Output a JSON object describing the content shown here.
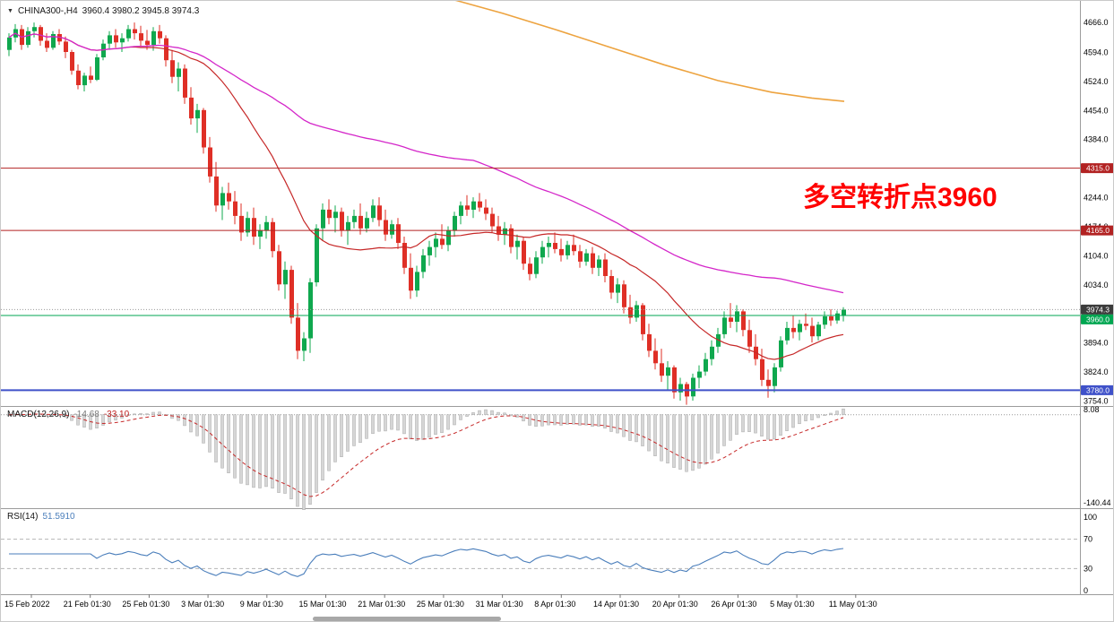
{
  "header": {
    "collapse_icon": "▼",
    "symbol": "CHINA300-,H4",
    "ohlc": "3960.4 3980.2 3945.8 3974.3"
  },
  "chart_data": {
    "type": "candlestick",
    "symbol": "CHINA300-,H4",
    "timeframe": "H4",
    "ohlc_display": "3960.4 3980.2 3945.8 3974.3",
    "ylim": [
      3742,
      4718
    ],
    "price_ticks": [
      4666,
      4594,
      4524,
      4454,
      4384,
      4314,
      4244,
      4174,
      4104,
      4034,
      3964,
      3894,
      3824,
      3754
    ],
    "colors": {
      "up": "#0fa84e",
      "down": "#df2f26"
    },
    "hlines": [
      {
        "price": 4315.0,
        "label": "4315.0",
        "color": "#b22222",
        "width": 1
      },
      {
        "price": 4165.0,
        "label": "4165.0",
        "color": "#b22222",
        "width": 1
      },
      {
        "price": 3960.0,
        "label": "3960.0",
        "color": "#00a651",
        "width": 1
      },
      {
        "price": 3780.0,
        "label": "3780.0",
        "color": "#3f51c9",
        "width": 2
      }
    ],
    "current_price": {
      "value": 3974.3,
      "label": "3974.3",
      "color": "#3c3c3c"
    },
    "annotation": {
      "text": "多空转折点3960",
      "color": "#ff0000"
    },
    "ma_fast": {
      "period": 20,
      "color": "#c62828"
    },
    "ma_slow": {
      "period": 75,
      "color": "#d426c9"
    },
    "orange_line": {
      "color": "#eda33f",
      "points": [
        [
          503,
          4722
        ],
        [
          560,
          4688
        ],
        [
          620,
          4648
        ],
        [
          680,
          4606
        ],
        [
          740,
          4564
        ],
        [
          800,
          4526
        ],
        [
          860,
          4498
        ],
        [
          905,
          4484
        ],
        [
          941,
          4476
        ]
      ]
    },
    "candles": [
      [
        4600,
        4640,
        4585,
        4630
      ],
      [
        4630,
        4662,
        4618,
        4650
      ],
      [
        4650,
        4660,
        4600,
        4612
      ],
      [
        4612,
        4655,
        4605,
        4645
      ],
      [
        4645,
        4666,
        4630,
        4655
      ],
      [
        4655,
        4660,
        4610,
        4622
      ],
      [
        4622,
        4640,
        4595,
        4605
      ],
      [
        4605,
        4645,
        4600,
        4638
      ],
      [
        4638,
        4650,
        4612,
        4620
      ],
      [
        4620,
        4632,
        4580,
        4595
      ],
      [
        4595,
        4600,
        4540,
        4550
      ],
      [
        4550,
        4565,
        4505,
        4515
      ],
      [
        4515,
        4545,
        4500,
        4538
      ],
      [
        4538,
        4560,
        4520,
        4528
      ],
      [
        4528,
        4590,
        4525,
        4582
      ],
      [
        4582,
        4625,
        4575,
        4615
      ],
      [
        4615,
        4645,
        4600,
        4635
      ],
      [
        4635,
        4650,
        4605,
        4618
      ],
      [
        4618,
        4640,
        4595,
        4628
      ],
      [
        4628,
        4660,
        4620,
        4650
      ],
      [
        4650,
        4666,
        4625,
        4640
      ],
      [
        4640,
        4658,
        4610,
        4622
      ],
      [
        4622,
        4648,
        4600,
        4612
      ],
      [
        4612,
        4655,
        4598,
        4645
      ],
      [
        4645,
        4660,
        4615,
        4628
      ],
      [
        4628,
        4635,
        4560,
        4575
      ],
      [
        4575,
        4600,
        4520,
        4535
      ],
      [
        4535,
        4570,
        4500,
        4555
      ],
      [
        4555,
        4565,
        4470,
        4485
      ],
      [
        4485,
        4510,
        4420,
        4435
      ],
      [
        4435,
        4470,
        4400,
        4455
      ],
      [
        4455,
        4460,
        4350,
        4365
      ],
      [
        4365,
        4390,
        4280,
        4295
      ],
      [
        4295,
        4330,
        4210,
        4225
      ],
      [
        4225,
        4270,
        4190,
        4255
      ],
      [
        4255,
        4280,
        4215,
        4235
      ],
      [
        4235,
        4260,
        4180,
        4200
      ],
      [
        4200,
        4230,
        4140,
        4160
      ],
      [
        4160,
        4210,
        4150,
        4195
      ],
      [
        4195,
        4220,
        4130,
        4150
      ],
      [
        4150,
        4180,
        4120,
        4165
      ],
      [
        4165,
        4200,
        4145,
        4185
      ],
      [
        4185,
        4195,
        4100,
        4115
      ],
      [
        4115,
        4130,
        4020,
        4035
      ],
      [
        4035,
        4090,
        4000,
        4070
      ],
      [
        4070,
        4080,
        3940,
        3955
      ],
      [
        3955,
        3990,
        3855,
        3875
      ],
      [
        3875,
        3920,
        3850,
        3905
      ],
      [
        3905,
        4050,
        3870,
        4040
      ],
      [
        4040,
        4180,
        4030,
        4170
      ],
      [
        4170,
        4230,
        4140,
        4215
      ],
      [
        4215,
        4240,
        4180,
        4195
      ],
      [
        4195,
        4225,
        4160,
        4210
      ],
      [
        4210,
        4220,
        4150,
        4165
      ],
      [
        4165,
        4200,
        4130,
        4185
      ],
      [
        4185,
        4215,
        4170,
        4200
      ],
      [
        4200,
        4230,
        4155,
        4170
      ],
      [
        4170,
        4210,
        4160,
        4195
      ],
      [
        4195,
        4240,
        4185,
        4225
      ],
      [
        4225,
        4245,
        4175,
        4190
      ],
      [
        4190,
        4215,
        4140,
        4155
      ],
      [
        4155,
        4190,
        4145,
        4180
      ],
      [
        4180,
        4195,
        4120,
        4135
      ],
      [
        4135,
        4150,
        4060,
        4075
      ],
      [
        4075,
        4110,
        4000,
        4020
      ],
      [
        4020,
        4080,
        4005,
        4065
      ],
      [
        4065,
        4120,
        4050,
        4105
      ],
      [
        4105,
        4140,
        4080,
        4125
      ],
      [
        4125,
        4160,
        4100,
        4145
      ],
      [
        4145,
        4180,
        4120,
        4130
      ],
      [
        4130,
        4175,
        4115,
        4165
      ],
      [
        4165,
        4210,
        4150,
        4200
      ],
      [
        4200,
        4235,
        4180,
        4225
      ],
      [
        4225,
        4250,
        4200,
        4215
      ],
      [
        4215,
        4245,
        4195,
        4235
      ],
      [
        4235,
        4255,
        4210,
        4220
      ],
      [
        4220,
        4240,
        4190,
        4205
      ],
      [
        4205,
        4220,
        4160,
        4175
      ],
      [
        4175,
        4200,
        4140,
        4155
      ],
      [
        4155,
        4185,
        4130,
        4170
      ],
      [
        4170,
        4180,
        4110,
        4125
      ],
      [
        4125,
        4155,
        4095,
        4140
      ],
      [
        4140,
        4150,
        4070,
        4085
      ],
      [
        4085,
        4100,
        4045,
        4060
      ],
      [
        4060,
        4115,
        4050,
        4100
      ],
      [
        4100,
        4140,
        4085,
        4125
      ],
      [
        4125,
        4150,
        4100,
        4135
      ],
      [
        4135,
        4160,
        4110,
        4120
      ],
      [
        4120,
        4145,
        4090,
        4105
      ],
      [
        4105,
        4140,
        4095,
        4130
      ],
      [
        4130,
        4155,
        4105,
        4115
      ],
      [
        4115,
        4130,
        4075,
        4090
      ],
      [
        4090,
        4120,
        4080,
        4110
      ],
      [
        4110,
        4125,
        4060,
        4075
      ],
      [
        4075,
        4105,
        4055,
        4095
      ],
      [
        4095,
        4110,
        4040,
        4055
      ],
      [
        4055,
        4070,
        4000,
        4015
      ],
      [
        4015,
        4050,
        3990,
        4035
      ],
      [
        4035,
        4045,
        3965,
        3980
      ],
      [
        3980,
        4010,
        3940,
        3955
      ],
      [
        3955,
        3995,
        3945,
        3985
      ],
      [
        3985,
        3990,
        3900,
        3915
      ],
      [
        3915,
        3940,
        3860,
        3875
      ],
      [
        3875,
        3905,
        3830,
        3845
      ],
      [
        3845,
        3880,
        3800,
        3815
      ],
      [
        3815,
        3850,
        3780,
        3835
      ],
      [
        3835,
        3840,
        3760,
        3775
      ],
      [
        3775,
        3810,
        3755,
        3795
      ],
      [
        3795,
        3800,
        3745,
        3765
      ],
      [
        3765,
        3820,
        3755,
        3810
      ],
      [
        3810,
        3840,
        3785,
        3825
      ],
      [
        3825,
        3870,
        3815,
        3855
      ],
      [
        3855,
        3900,
        3840,
        3885
      ],
      [
        3885,
        3930,
        3870,
        3915
      ],
      [
        3915,
        3970,
        3905,
        3955
      ],
      [
        3955,
        3990,
        3930,
        3945
      ],
      [
        3945,
        3985,
        3920,
        3970
      ],
      [
        3970,
        3975,
        3910,
        3925
      ],
      [
        3925,
        3950,
        3870,
        3885
      ],
      [
        3885,
        3915,
        3840,
        3855
      ],
      [
        3855,
        3880,
        3790,
        3805
      ],
      [
        3805,
        3830,
        3762,
        3790
      ],
      [
        3790,
        3845,
        3775,
        3835
      ],
      [
        3835,
        3910,
        3825,
        3900
      ],
      [
        3900,
        3945,
        3890,
        3930
      ],
      [
        3930,
        3960,
        3905,
        3920
      ],
      [
        3920,
        3950,
        3900,
        3940
      ],
      [
        3940,
        3965,
        3925,
        3935
      ],
      [
        3935,
        3955,
        3895,
        3910
      ],
      [
        3910,
        3945,
        3900,
        3938
      ],
      [
        3938,
        3970,
        3928,
        3958
      ],
      [
        3958,
        3975,
        3935,
        3948
      ],
      [
        3948,
        3972,
        3940,
        3965
      ],
      [
        3960.4,
        3980.2,
        3945.8,
        3974.3
      ]
    ],
    "time_labels": [
      "15 Feb 2022",
      "21 Feb 01:30",
      "25 Feb 01:30",
      "3 Mar 01:30",
      "9 Mar 01:30",
      "15 Mar 01:30",
      "21 Mar 01:30",
      "25 Mar 01:30",
      "31 Mar 01:30",
      "8 Apr 01:30",
      "14 Apr 01:30",
      "20 Apr 01:30",
      "26 Apr 01:30",
      "5 May 01:30",
      "11 May 01:30"
    ],
    "macd": {
      "name": "MACD(12,26,9)",
      "macd_value": "-14.68",
      "signal_value": "-33.10",
      "axis_max": "8.08",
      "axis_min": "-140.44",
      "ylim": [
        -140.44,
        8.08
      ],
      "histogram_color": "#d6d6d6",
      "signal_color": "#c62828"
    },
    "rsi": {
      "name": "RSI(14)",
      "value": "51.5910",
      "color": "#4a7ebb",
      "axis_labels": [
        100,
        70,
        30,
        0
      ],
      "levels_dashed": [
        70,
        30
      ],
      "ylim": [
        0,
        100
      ]
    }
  }
}
